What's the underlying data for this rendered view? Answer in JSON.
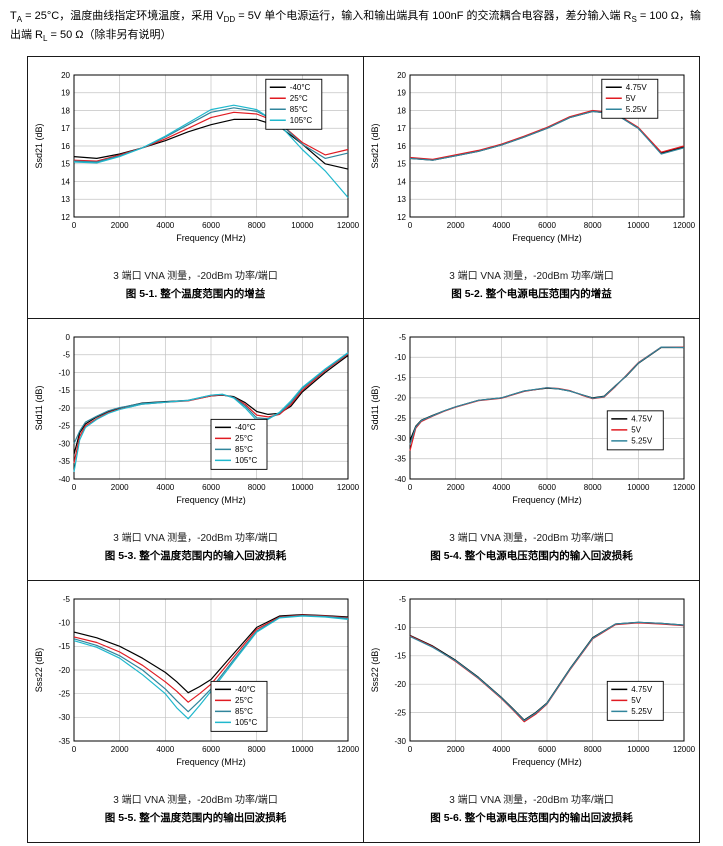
{
  "header": {
    "segments": [
      {
        "text": "T",
        "sub": false
      },
      {
        "text": "A",
        "sub": true
      },
      {
        "text": " = 25°C，温度曲线指定环境温度，采用 V",
        "sub": false
      },
      {
        "text": "DD",
        "sub": true
      },
      {
        "text": " = 5V 单个电源运行，输入和输出端具有 100nF 的交流耦合电容器，差分输入端 R",
        "sub": false
      },
      {
        "text": "S",
        "sub": true
      },
      {
        "text": " = 100 Ω，输出端 R",
        "sub": false
      },
      {
        "text": "L",
        "sub": true
      },
      {
        "text": " = 50 Ω（除非另有说明）",
        "sub": false
      }
    ]
  },
  "figures": [
    {
      "note": "3 端口 VNA 测量，-20dBm 功率/端口",
      "caption": "图 5-1. 整个温度范围内的增益"
    },
    {
      "note": "3 端口 VNA 测量，-20dBm 功率/端口",
      "caption": "图 5-2. 整个电源电压范围内的增益"
    },
    {
      "note": "3 端口 VNA 测量，-20dBm 功率/端口",
      "caption": "图 5-3. 整个温度范围内的输入回波损耗"
    },
    {
      "note": "3 端口 VNA 测量，-20dBm 功率/端口",
      "caption": "图 5-4. 整个电源电压范围内的输入回波损耗"
    },
    {
      "note": "3 端口 VNA 测量，-20dBm 功率/端口",
      "caption": "图 5-5. 整个温度范围内的输出回波损耗"
    },
    {
      "note": "3 端口 VNA 测量，-20dBm 功率/端口",
      "caption": "图 5-6. 整个电源电压范围内的输出回波损耗"
    }
  ],
  "chart_data": [
    {
      "type": "line",
      "xlabel": "Frequency (MHz)",
      "ylabel": "Ssd21 (dB)",
      "xlim": [
        0,
        12000
      ],
      "ylim": [
        12,
        20
      ],
      "xticks": [
        0,
        2000,
        4000,
        6000,
        8000,
        10000,
        12000
      ],
      "yticks": [
        12,
        13,
        14,
        15,
        16,
        17,
        18,
        19,
        20
      ],
      "x": [
        0,
        1000,
        2000,
        3000,
        4000,
        5000,
        6000,
        7000,
        8000,
        9000,
        10000,
        11000,
        12000
      ],
      "legend": {
        "fx": 0.7,
        "fy": 0.03
      },
      "series": [
        {
          "name": "-40°C",
          "color": "#000000",
          "values": [
            15.4,
            15.3,
            15.55,
            15.9,
            16.3,
            16.8,
            17.2,
            17.5,
            17.5,
            17.1,
            16.1,
            15.0,
            14.7
          ]
        },
        {
          "name": "25°C",
          "color": "#e01b22",
          "values": [
            15.2,
            15.15,
            15.5,
            15.9,
            16.4,
            17.0,
            17.6,
            17.9,
            17.8,
            17.3,
            16.2,
            15.5,
            15.8
          ]
        },
        {
          "name": "85°C",
          "color": "#31859c",
          "values": [
            15.15,
            15.1,
            15.45,
            15.9,
            16.5,
            17.2,
            17.9,
            18.15,
            17.95,
            17.3,
            16.1,
            15.3,
            15.6
          ]
        },
        {
          "name": "105°C",
          "color": "#20b8cd",
          "values": [
            15.1,
            15.05,
            15.4,
            15.9,
            16.55,
            17.3,
            18.05,
            18.3,
            18.05,
            17.2,
            15.8,
            14.6,
            13.1
          ]
        }
      ]
    },
    {
      "type": "line",
      "xlabel": "Frequency (MHz)",
      "ylabel": "Ssd21 (dB)",
      "xlim": [
        0,
        12000
      ],
      "ylim": [
        12,
        20
      ],
      "xticks": [
        0,
        2000,
        4000,
        6000,
        8000,
        10000,
        12000
      ],
      "yticks": [
        12,
        13,
        14,
        15,
        16,
        17,
        18,
        19,
        20
      ],
      "x": [
        0,
        1000,
        2000,
        3000,
        4000,
        5000,
        6000,
        7000,
        8000,
        9000,
        10000,
        11000,
        12000
      ],
      "legend": {
        "fx": 0.7,
        "fy": 0.03
      },
      "series": [
        {
          "name": "4.75V",
          "color": "#000000",
          "values": [
            15.3,
            15.2,
            15.45,
            15.7,
            16.05,
            16.5,
            17.0,
            17.6,
            17.95,
            17.8,
            17.0,
            15.6,
            15.95
          ]
        },
        {
          "name": "5V",
          "color": "#e01b22",
          "values": [
            15.35,
            15.25,
            15.5,
            15.75,
            16.1,
            16.55,
            17.05,
            17.65,
            18.0,
            17.85,
            17.05,
            15.65,
            16.0
          ]
        },
        {
          "name": "5.25V",
          "color": "#31859c",
          "values": [
            15.3,
            15.2,
            15.45,
            15.7,
            16.05,
            16.5,
            17.0,
            17.6,
            17.95,
            17.8,
            17.0,
            15.55,
            15.9
          ]
        }
      ]
    },
    {
      "type": "line",
      "xlabel": "Frequency (MHz)",
      "ylabel": "Sdd11 (dB)",
      "xlim": [
        0,
        12000
      ],
      "ylim": [
        -40,
        0
      ],
      "xticks": [
        0,
        2000,
        4000,
        6000,
        8000,
        10000,
        12000
      ],
      "yticks": [
        0,
        -5,
        -10,
        -15,
        -20,
        -25,
        -30,
        -35,
        -40
      ],
      "x": [
        0,
        250,
        500,
        1000,
        1500,
        2000,
        3000,
        4000,
        5000,
        6000,
        6500,
        7000,
        7500,
        8000,
        8500,
        9000,
        9500,
        10000,
        11000,
        12000
      ],
      "legend": {
        "fx": 0.5,
        "fy": 0.58
      },
      "series": [
        {
          "name": "-40°C",
          "color": "#000000",
          "values": [
            -33,
            -27,
            -24.5,
            -22.5,
            -21,
            -20,
            -18.6,
            -18.2,
            -17.9,
            -16.6,
            -16.4,
            -16.8,
            -18.5,
            -21.0,
            -21.8,
            -21.5,
            -19.5,
            -15.5,
            -10.0,
            -5.2
          ]
        },
        {
          "name": "25°C",
          "color": "#e01b22",
          "values": [
            -35.5,
            -28,
            -25,
            -23,
            -21.3,
            -20.3,
            -18.9,
            -18.4,
            -18.0,
            -16.6,
            -16.3,
            -17.0,
            -19.0,
            -22.0,
            -22.5,
            -21.8,
            -19.0,
            -15.0,
            -9.5,
            -4.8
          ]
        },
        {
          "name": "85°C",
          "color": "#31859c",
          "values": [
            -30,
            -26.5,
            -24,
            -22.3,
            -20.8,
            -19.9,
            -18.7,
            -18.3,
            -17.8,
            -16.4,
            -16.2,
            -17.0,
            -19.5,
            -22.8,
            -23.0,
            -21.5,
            -18.5,
            -14.5,
            -9.2,
            -4.6
          ]
        },
        {
          "name": "105°C",
          "color": "#20b8cd",
          "values": [
            -38,
            -29,
            -25.5,
            -23.2,
            -21.5,
            -20.4,
            -18.9,
            -18.4,
            -17.9,
            -16.4,
            -16.1,
            -17.2,
            -20.0,
            -23.5,
            -23.2,
            -21.2,
            -18.0,
            -14.2,
            -9.0,
            -4.4
          ]
        }
      ]
    },
    {
      "type": "line",
      "xlabel": "Frequency (MHz)",
      "ylabel": "Sdd11 (dB)",
      "xlim": [
        0,
        12000
      ],
      "ylim": [
        -40,
        -5
      ],
      "xticks": [
        0,
        2000,
        4000,
        6000,
        8000,
        10000,
        12000
      ],
      "yticks": [
        -5,
        -10,
        -15,
        -20,
        -25,
        -30,
        -35,
        -40
      ],
      "x": [
        0,
        250,
        500,
        1000,
        1500,
        2000,
        3000,
        4000,
        5000,
        6000,
        6500,
        7000,
        7500,
        8000,
        8500,
        9000,
        9500,
        10000,
        11000,
        12000
      ],
      "legend": {
        "fx": 0.72,
        "fy": 0.52
      },
      "series": [
        {
          "name": "4.75V",
          "color": "#000000",
          "values": [
            -30.5,
            -27,
            -25.5,
            -24.3,
            -23.2,
            -22.2,
            -20.6,
            -20.0,
            -18.3,
            -17.6,
            -17.8,
            -18.3,
            -19.2,
            -20.0,
            -19.6,
            -17.0,
            -14.5,
            -11.5,
            -7.6,
            -7.6
          ]
        },
        {
          "name": "5V",
          "color": "#e01b22",
          "values": [
            -33,
            -27.5,
            -25.8,
            -24.5,
            -23.3,
            -22.3,
            -20.7,
            -20.1,
            -18.4,
            -17.5,
            -17.7,
            -18.2,
            -19.3,
            -20.2,
            -19.8,
            -17.2,
            -14.3,
            -11.3,
            -7.5,
            -7.5
          ]
        },
        {
          "name": "5.25V",
          "color": "#31859c",
          "values": [
            -31.5,
            -27.2,
            -25.6,
            -24.4,
            -23.2,
            -22.2,
            -20.6,
            -20.0,
            -18.3,
            -17.5,
            -17.8,
            -18.3,
            -19.2,
            -20.1,
            -19.7,
            -17.1,
            -14.4,
            -11.4,
            -7.5,
            -7.6
          ]
        }
      ]
    },
    {
      "type": "line",
      "xlabel": "Frequency (MHz)",
      "ylabel": "Sss22 (dB)",
      "xlim": [
        0,
        12000
      ],
      "ylim": [
        -35,
        -5
      ],
      "xticks": [
        0,
        2000,
        4000,
        6000,
        8000,
        10000,
        12000
      ],
      "yticks": [
        -5,
        -10,
        -15,
        -20,
        -25,
        -30,
        -35
      ],
      "x": [
        0,
        1000,
        2000,
        3000,
        4000,
        4500,
        5000,
        5500,
        6000,
        7000,
        8000,
        9000,
        10000,
        11000,
        12000
      ],
      "legend": {
        "fx": 0.5,
        "fy": 0.58
      },
      "series": [
        {
          "name": "-40°C",
          "color": "#000000",
          "values": [
            -12.0,
            -13.2,
            -15.0,
            -17.5,
            -20.5,
            -22.5,
            -24.8,
            -23.5,
            -22.0,
            -16.5,
            -11.0,
            -8.6,
            -8.3,
            -8.5,
            -8.8
          ]
        },
        {
          "name": "25°C",
          "color": "#e01b22",
          "values": [
            -13.0,
            -14.2,
            -16.2,
            -19.0,
            -22.5,
            -24.5,
            -26.8,
            -25.0,
            -23.0,
            -17.2,
            -11.4,
            -8.8,
            -8.4,
            -8.6,
            -9.0
          ]
        },
        {
          "name": "85°C",
          "color": "#31859c",
          "values": [
            -13.4,
            -14.8,
            -17.0,
            -20.0,
            -24.0,
            -26.5,
            -28.8,
            -26.5,
            -24.0,
            -17.8,
            -11.8,
            -8.9,
            -8.5,
            -8.7,
            -9.1
          ]
        },
        {
          "name": "105°C",
          "color": "#20b8cd",
          "values": [
            -13.8,
            -15.2,
            -17.5,
            -21.0,
            -25.0,
            -28.0,
            -30.3,
            -27.5,
            -24.5,
            -18.2,
            -12.0,
            -9.0,
            -8.6,
            -8.8,
            -9.3
          ]
        }
      ]
    },
    {
      "type": "line",
      "xlabel": "Frequency (MHz)",
      "ylabel": "Sss22 (dB)",
      "xlim": [
        0,
        12000
      ],
      "ylim": [
        -30,
        -5
      ],
      "xticks": [
        0,
        2000,
        4000,
        6000,
        8000,
        10000,
        12000
      ],
      "yticks": [
        -5,
        -10,
        -15,
        -20,
        -25,
        -30
      ],
      "x": [
        0,
        1000,
        2000,
        3000,
        4000,
        4500,
        5000,
        5500,
        6000,
        7000,
        8000,
        9000,
        10000,
        11000,
        12000
      ],
      "legend": {
        "fx": 0.72,
        "fy": 0.58
      },
      "series": [
        {
          "name": "4.75V",
          "color": "#000000",
          "values": [
            -11.4,
            -13.3,
            -15.8,
            -18.8,
            -22.3,
            -24.3,
            -26.3,
            -25.0,
            -23.3,
            -17.3,
            -11.8,
            -9.4,
            -9.1,
            -9.3,
            -9.6
          ]
        },
        {
          "name": "5V",
          "color": "#e01b22",
          "values": [
            -11.5,
            -13.4,
            -16.0,
            -19.0,
            -22.5,
            -24.5,
            -26.6,
            -25.3,
            -23.5,
            -17.5,
            -12.0,
            -9.5,
            -9.2,
            -9.4,
            -9.7
          ]
        },
        {
          "name": "5.25V",
          "color": "#31859c",
          "values": [
            -11.6,
            -13.5,
            -15.9,
            -18.9,
            -22.4,
            -24.4,
            -26.4,
            -25.1,
            -23.4,
            -17.4,
            -11.9,
            -9.4,
            -9.1,
            -9.3,
            -9.6
          ]
        }
      ]
    }
  ]
}
